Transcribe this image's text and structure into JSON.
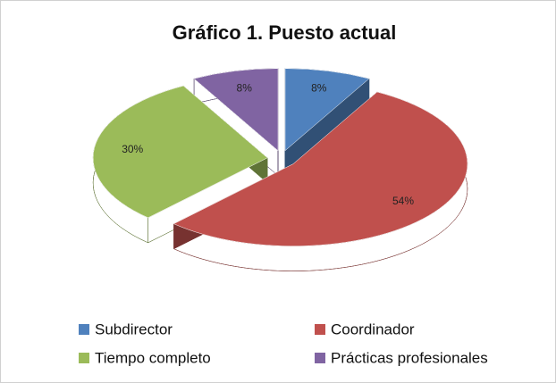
{
  "chart_data": {
    "type": "pie",
    "title": "Gráfico 1.  Puesto actual",
    "categories": [
      "Subdirector",
      "Coordinador",
      "Tiempo completo",
      "Prácticas profesionales"
    ],
    "values": [
      8,
      54,
      30,
      8
    ],
    "value_labels": [
      "8%",
      "54%",
      "30%",
      "8%"
    ],
    "colors": [
      "#4f81bd",
      "#c0504d",
      "#9bbb59",
      "#8064a2"
    ],
    "legend": "bottom"
  }
}
